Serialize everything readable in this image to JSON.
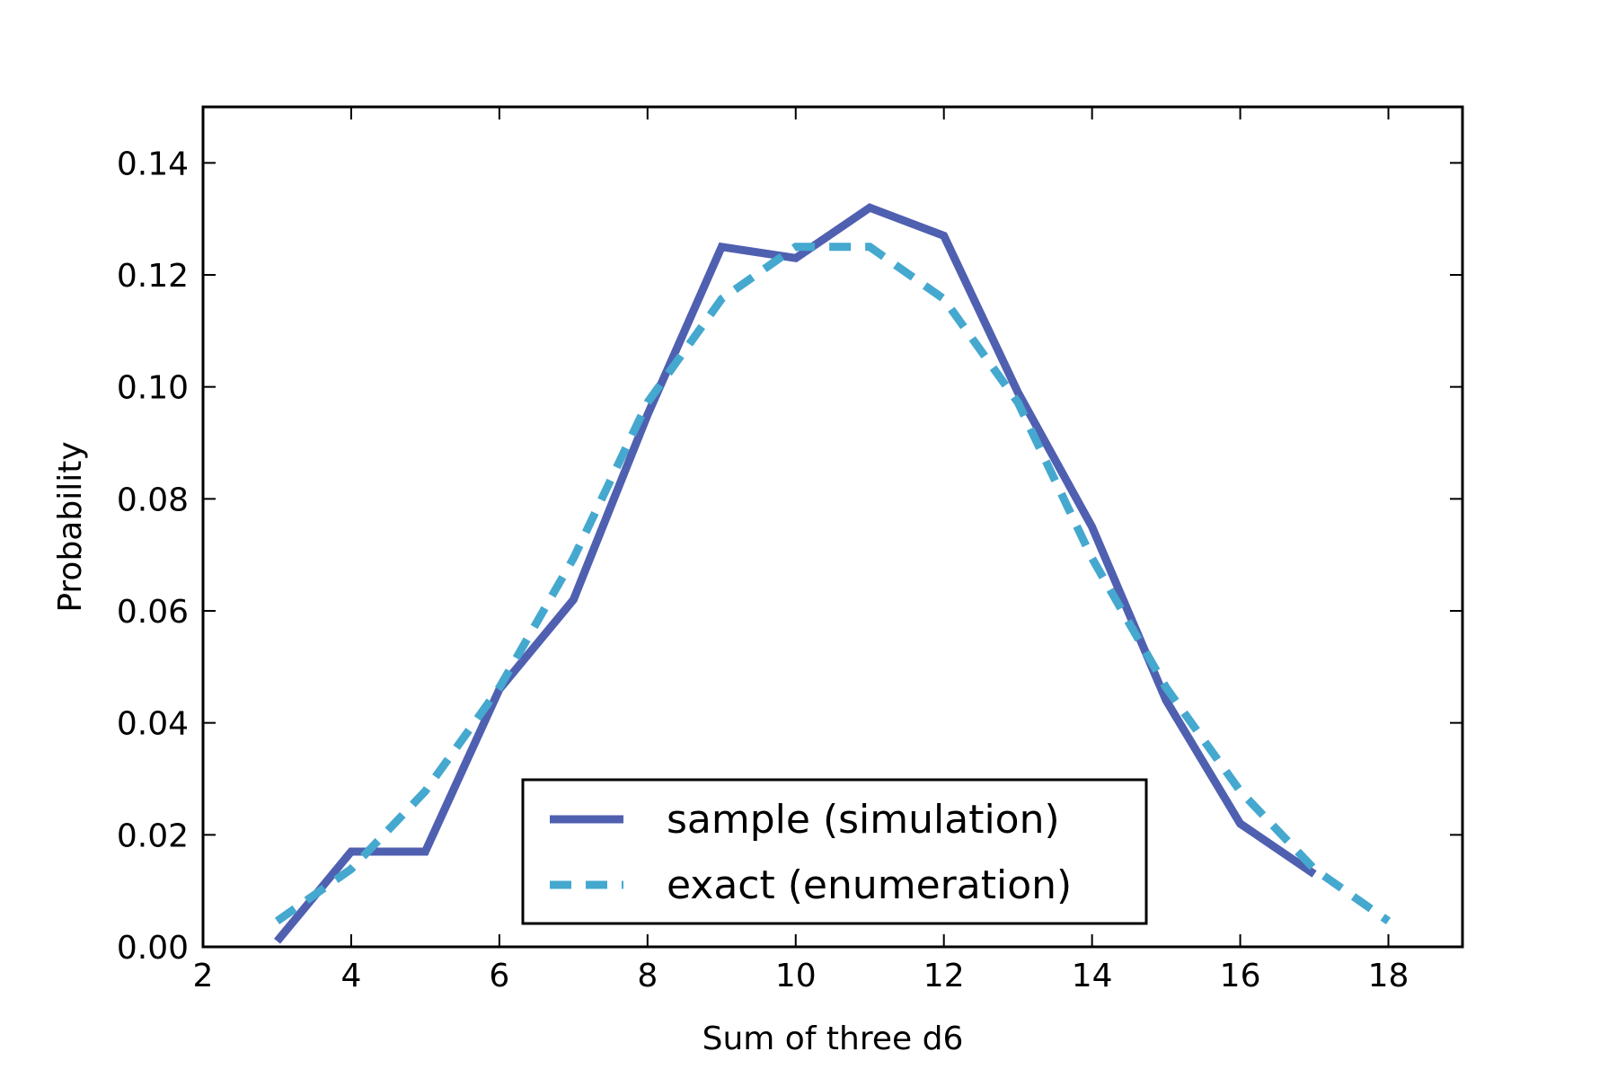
{
  "chart_data": {
    "type": "line",
    "xlabel": "Sum of three d6",
    "ylabel": "Probability",
    "xlim": [
      2,
      19
    ],
    "ylim": [
      0,
      0.15
    ],
    "xticks": [
      2,
      4,
      6,
      8,
      10,
      12,
      14,
      16,
      18
    ],
    "yticks": [
      0.0,
      0.02,
      0.04,
      0.06,
      0.08,
      0.1,
      0.12,
      0.14
    ],
    "xtick_labels": [
      "2",
      "4",
      "6",
      "8",
      "10",
      "12",
      "14",
      "16",
      "18"
    ],
    "ytick_labels": [
      "0.00",
      "0.02",
      "0.04",
      "0.06",
      "0.08",
      "0.10",
      "0.12",
      "0.14"
    ],
    "grid": false,
    "legend_position": "bottom-center",
    "series": [
      {
        "name": "sample (simulation)",
        "style": "solid",
        "color": "#5060b0",
        "x": [
          3,
          4,
          5,
          6,
          7,
          8,
          9,
          10,
          11,
          12,
          13,
          14,
          15,
          16,
          17
        ],
        "y": [
          0.001,
          0.017,
          0.017,
          0.046,
          0.062,
          0.095,
          0.125,
          0.123,
          0.132,
          0.127,
          0.099,
          0.075,
          0.044,
          0.022,
          0.013
        ]
      },
      {
        "name": "exact (enumeration)",
        "style": "dashed",
        "color": "#45a8cf",
        "x": [
          3,
          4,
          5,
          6,
          7,
          8,
          9,
          10,
          11,
          12,
          13,
          14,
          15,
          16,
          17,
          18
        ],
        "y": [
          0.0046,
          0.0139,
          0.0278,
          0.0463,
          0.0694,
          0.0972,
          0.1157,
          0.125,
          0.125,
          0.1157,
          0.0972,
          0.0694,
          0.0463,
          0.0278,
          0.0139,
          0.0046
        ]
      }
    ]
  }
}
